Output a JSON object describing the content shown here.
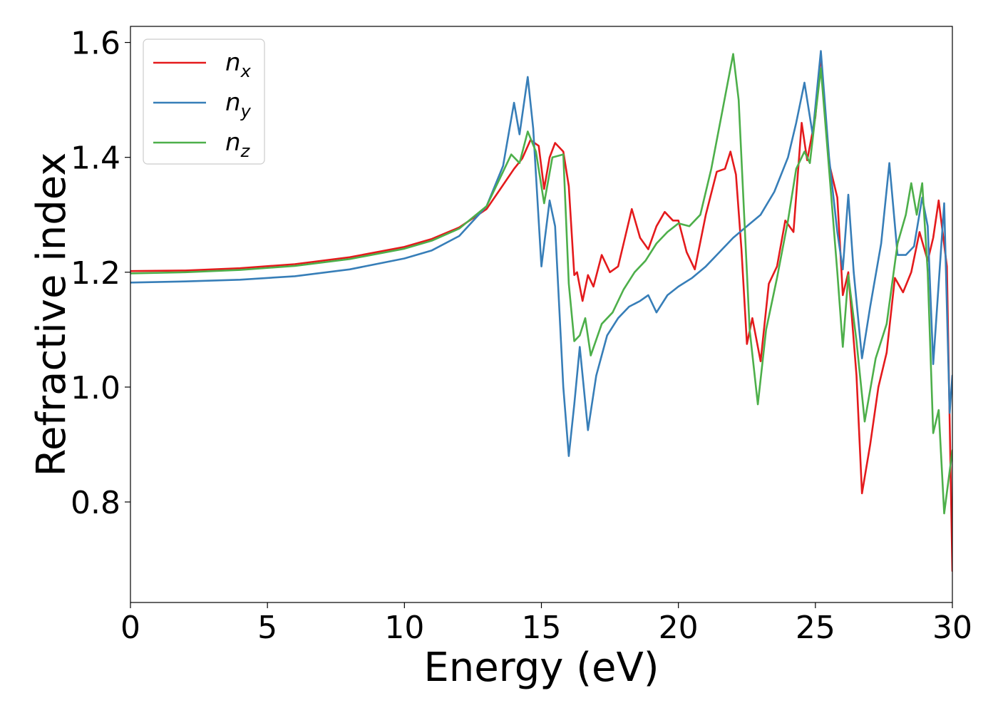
{
  "chart_data": {
    "type": "line",
    "title": "",
    "xlabel": "Energy (eV)",
    "ylabel": "Refractive index",
    "xlim": [
      0,
      30
    ],
    "ylim": [
      0.625,
      1.628
    ],
    "xticks": [
      0,
      5,
      10,
      15,
      20,
      25,
      30
    ],
    "xtick_labels": [
      "0",
      "5",
      "10",
      "15",
      "20",
      "25",
      "30"
    ],
    "yticks": [
      0.8,
      1.0,
      1.2,
      1.4,
      1.6
    ],
    "ytick_labels": [
      "0.8",
      "1.0",
      "1.2",
      "1.4",
      "1.6"
    ],
    "grid": false,
    "legend_position": "top-left",
    "series": [
      {
        "name": "n_x",
        "label_base": "n",
        "label_sub": "x",
        "color": "#e41a1c",
        "points": [
          [
            0,
            1.202
          ],
          [
            2,
            1.203
          ],
          [
            4,
            1.207
          ],
          [
            6,
            1.214
          ],
          [
            8,
            1.226
          ],
          [
            10,
            1.244
          ],
          [
            11,
            1.258
          ],
          [
            12,
            1.278
          ],
          [
            13,
            1.31
          ],
          [
            13.5,
            1.345
          ],
          [
            14,
            1.38
          ],
          [
            14.3,
            1.398
          ],
          [
            14.6,
            1.43
          ],
          [
            14.9,
            1.42
          ],
          [
            15.1,
            1.345
          ],
          [
            15.3,
            1.4
          ],
          [
            15.5,
            1.425
          ],
          [
            15.8,
            1.41
          ],
          [
            16,
            1.35
          ],
          [
            16.2,
            1.195
          ],
          [
            16.3,
            1.2
          ],
          [
            16.5,
            1.15
          ],
          [
            16.7,
            1.195
          ],
          [
            16.9,
            1.175
          ],
          [
            17.2,
            1.23
          ],
          [
            17.5,
            1.2
          ],
          [
            17.8,
            1.21
          ],
          [
            18,
            1.25
          ],
          [
            18.3,
            1.31
          ],
          [
            18.6,
            1.26
          ],
          [
            18.9,
            1.24
          ],
          [
            19.2,
            1.28
          ],
          [
            19.5,
            1.305
          ],
          [
            19.8,
            1.29
          ],
          [
            20,
            1.29
          ],
          [
            20.3,
            1.235
          ],
          [
            20.6,
            1.205
          ],
          [
            21,
            1.3
          ],
          [
            21.4,
            1.375
          ],
          [
            21.7,
            1.38
          ],
          [
            21.9,
            1.41
          ],
          [
            22.1,
            1.37
          ],
          [
            22.3,
            1.24
          ],
          [
            22.5,
            1.075
          ],
          [
            22.7,
            1.12
          ],
          [
            23,
            1.045
          ],
          [
            23.3,
            1.18
          ],
          [
            23.6,
            1.21
          ],
          [
            23.9,
            1.29
          ],
          [
            24.2,
            1.27
          ],
          [
            24.5,
            1.46
          ],
          [
            24.7,
            1.395
          ],
          [
            25,
            1.47
          ],
          [
            25.2,
            1.58
          ],
          [
            25.5,
            1.39
          ],
          [
            25.8,
            1.33
          ],
          [
            26,
            1.16
          ],
          [
            26.2,
            1.2
          ],
          [
            26.5,
            1.02
          ],
          [
            26.7,
            0.815
          ],
          [
            27,
            0.9
          ],
          [
            27.3,
            1.0
          ],
          [
            27.6,
            1.06
          ],
          [
            27.9,
            1.19
          ],
          [
            28.2,
            1.165
          ],
          [
            28.5,
            1.2
          ],
          [
            28.8,
            1.27
          ],
          [
            29.1,
            1.22
          ],
          [
            29.3,
            1.26
          ],
          [
            29.5,
            1.325
          ],
          [
            29.8,
            1.21
          ],
          [
            30,
            0.68
          ]
        ]
      },
      {
        "name": "n_y",
        "label_base": "n",
        "label_sub": "y",
        "color": "#377eb8",
        "points": [
          [
            0,
            1.182
          ],
          [
            2,
            1.184
          ],
          [
            4,
            1.187
          ],
          [
            6,
            1.193
          ],
          [
            8,
            1.205
          ],
          [
            10,
            1.224
          ],
          [
            11,
            1.238
          ],
          [
            12,
            1.263
          ],
          [
            13,
            1.315
          ],
          [
            13.6,
            1.385
          ],
          [
            14,
            1.495
          ],
          [
            14.2,
            1.44
          ],
          [
            14.5,
            1.54
          ],
          [
            14.7,
            1.45
          ],
          [
            15,
            1.21
          ],
          [
            15.3,
            1.325
          ],
          [
            15.5,
            1.28
          ],
          [
            15.8,
            1.0
          ],
          [
            16,
            0.88
          ],
          [
            16.2,
            0.97
          ],
          [
            16.4,
            1.07
          ],
          [
            16.7,
            0.925
          ],
          [
            17,
            1.02
          ],
          [
            17.4,
            1.09
          ],
          [
            17.8,
            1.12
          ],
          [
            18.2,
            1.14
          ],
          [
            18.6,
            1.15
          ],
          [
            18.9,
            1.16
          ],
          [
            19.2,
            1.13
          ],
          [
            19.6,
            1.16
          ],
          [
            20,
            1.175
          ],
          [
            20.5,
            1.19
          ],
          [
            21,
            1.21
          ],
          [
            21.5,
            1.235
          ],
          [
            22,
            1.26
          ],
          [
            22.5,
            1.28
          ],
          [
            23,
            1.3
          ],
          [
            23.5,
            1.34
          ],
          [
            24,
            1.4
          ],
          [
            24.3,
            1.46
          ],
          [
            24.6,
            1.53
          ],
          [
            24.9,
            1.44
          ],
          [
            25.2,
            1.585
          ],
          [
            25.5,
            1.4
          ],
          [
            25.8,
            1.27
          ],
          [
            26,
            1.205
          ],
          [
            26.2,
            1.335
          ],
          [
            26.4,
            1.2
          ],
          [
            26.7,
            1.05
          ],
          [
            27,
            1.14
          ],
          [
            27.4,
            1.25
          ],
          [
            27.7,
            1.39
          ],
          [
            28,
            1.23
          ],
          [
            28.3,
            1.23
          ],
          [
            28.6,
            1.245
          ],
          [
            28.9,
            1.33
          ],
          [
            29.1,
            1.28
          ],
          [
            29.3,
            1.04
          ],
          [
            29.5,
            1.18
          ],
          [
            29.7,
            1.32
          ],
          [
            29.9,
            0.955
          ],
          [
            30,
            1.02
          ]
        ]
      },
      {
        "name": "n_z",
        "label_base": "n",
        "label_sub": "z",
        "color": "#4daf4a",
        "points": [
          [
            0,
            1.198
          ],
          [
            2,
            1.2
          ],
          [
            4,
            1.204
          ],
          [
            6,
            1.211
          ],
          [
            8,
            1.223
          ],
          [
            10,
            1.241
          ],
          [
            11,
            1.255
          ],
          [
            12,
            1.276
          ],
          [
            13,
            1.315
          ],
          [
            13.6,
            1.375
          ],
          [
            13.9,
            1.405
          ],
          [
            14.2,
            1.39
          ],
          [
            14.5,
            1.445
          ],
          [
            14.8,
            1.41
          ],
          [
            15.1,
            1.32
          ],
          [
            15.4,
            1.4
          ],
          [
            15.8,
            1.405
          ],
          [
            16,
            1.18
          ],
          [
            16.2,
            1.08
          ],
          [
            16.4,
            1.09
          ],
          [
            16.6,
            1.12
          ],
          [
            16.8,
            1.055
          ],
          [
            17.2,
            1.11
          ],
          [
            17.6,
            1.13
          ],
          [
            18,
            1.17
          ],
          [
            18.4,
            1.2
          ],
          [
            18.8,
            1.22
          ],
          [
            19.2,
            1.25
          ],
          [
            19.6,
            1.27
          ],
          [
            20,
            1.285
          ],
          [
            20.4,
            1.28
          ],
          [
            20.8,
            1.3
          ],
          [
            21.2,
            1.38
          ],
          [
            21.6,
            1.48
          ],
          [
            22,
            1.58
          ],
          [
            22.2,
            1.5
          ],
          [
            22.4,
            1.3
          ],
          [
            22.6,
            1.1
          ],
          [
            22.9,
            0.97
          ],
          [
            23.2,
            1.1
          ],
          [
            23.6,
            1.19
          ],
          [
            24,
            1.29
          ],
          [
            24.3,
            1.38
          ],
          [
            24.6,
            1.41
          ],
          [
            24.8,
            1.39
          ],
          [
            25.2,
            1.555
          ],
          [
            25.5,
            1.38
          ],
          [
            25.8,
            1.2
          ],
          [
            26,
            1.07
          ],
          [
            26.2,
            1.195
          ],
          [
            26.5,
            1.08
          ],
          [
            26.8,
            0.94
          ],
          [
            27.2,
            1.05
          ],
          [
            27.6,
            1.11
          ],
          [
            28,
            1.25
          ],
          [
            28.3,
            1.3
          ],
          [
            28.5,
            1.355
          ],
          [
            28.7,
            1.3
          ],
          [
            28.9,
            1.355
          ],
          [
            29.1,
            1.2
          ],
          [
            29.3,
            0.92
          ],
          [
            29.5,
            0.96
          ],
          [
            29.7,
            0.78
          ],
          [
            30,
            0.89
          ]
        ]
      }
    ]
  }
}
